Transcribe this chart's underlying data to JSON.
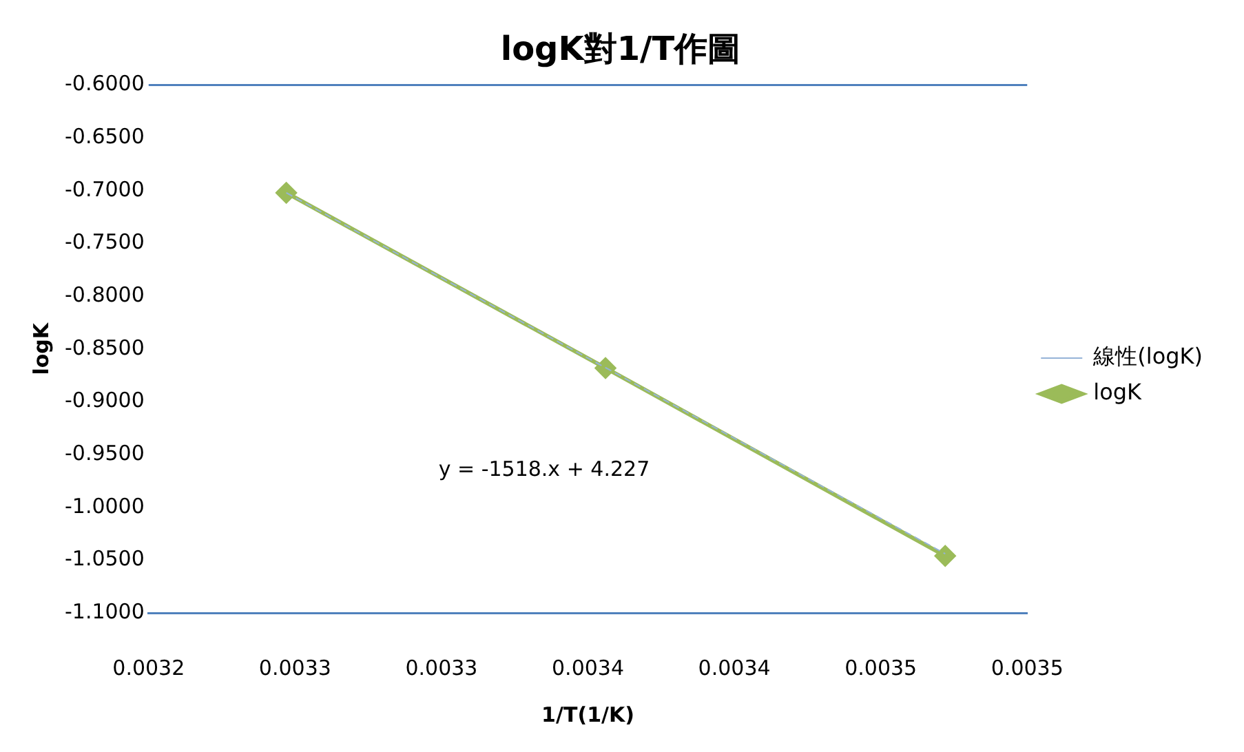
{
  "chart_data": {
    "type": "scatter",
    "title": "logK對1/T作圖",
    "xlabel": "1/T(1/K)",
    "ylabel": "logK",
    "series": [
      {
        "name": "logK",
        "type": "line",
        "color": "#9bbb59",
        "marker": "diamond",
        "line_style": "solid",
        "x": [
          0.003247,
          0.003356,
          0.003472
        ],
        "values": [
          -0.702,
          -0.868,
          -1.046
        ]
      },
      {
        "name": "線性(logK)",
        "type": "line",
        "color": "#95b3d7",
        "marker": "none",
        "line_style": "dashed",
        "x": [
          0.003247,
          0.003472
        ],
        "values": [
          -0.702,
          -1.044
        ]
      }
    ],
    "xlim": [
      0.0032,
      0.0035
    ],
    "xticks": [
      {
        "value": 0.0032,
        "label": "0.0032"
      },
      {
        "value": 0.00325,
        "label": "0.0033"
      },
      {
        "value": 0.0033,
        "label": "0.0033"
      },
      {
        "value": 0.00335,
        "label": "0.0034"
      },
      {
        "value": 0.0034,
        "label": "0.0034"
      },
      {
        "value": 0.00345,
        "label": "0.0035"
      },
      {
        "value": 0.0035,
        "label": "0.0035"
      }
    ],
    "ylim": [
      -1.1,
      -0.6
    ],
    "yticks": [
      {
        "value": -0.6,
        "label": "-0.6000"
      },
      {
        "value": -0.65,
        "label": "-0.6500"
      },
      {
        "value": -0.7,
        "label": "-0.7000"
      },
      {
        "value": -0.75,
        "label": "-0.7500"
      },
      {
        "value": -0.8,
        "label": "-0.8000"
      },
      {
        "value": -0.85,
        "label": "-0.8500"
      },
      {
        "value": -0.9,
        "label": "-0.9000"
      },
      {
        "value": -0.95,
        "label": "-0.9500"
      },
      {
        "value": -1.0,
        "label": "-1.0000"
      },
      {
        "value": -1.05,
        "label": "-1.0500"
      },
      {
        "value": -1.1,
        "label": "-1.1000"
      }
    ],
    "annotations": [
      "y = -1518.x + 4.227"
    ],
    "legend": "right",
    "grid": false
  }
}
